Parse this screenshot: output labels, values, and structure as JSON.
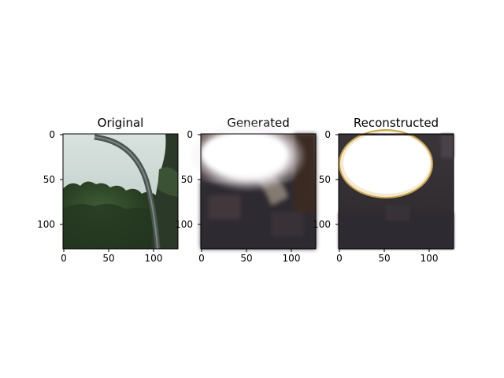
{
  "figure": {
    "panels": [
      {
        "title": "Original",
        "y_ticks": [
          "0",
          "50",
          "100"
        ],
        "x_ticks": [
          "0",
          "50",
          "100"
        ]
      },
      {
        "title": "Generated",
        "y_ticks": [
          "0",
          "50",
          "100"
        ],
        "x_ticks": [
          "0",
          "50",
          "100"
        ]
      },
      {
        "title": "Reconstructed",
        "y_ticks": [
          "0",
          "50",
          "100"
        ],
        "x_ticks": [
          "0",
          "50",
          "100"
        ]
      }
    ]
  }
}
